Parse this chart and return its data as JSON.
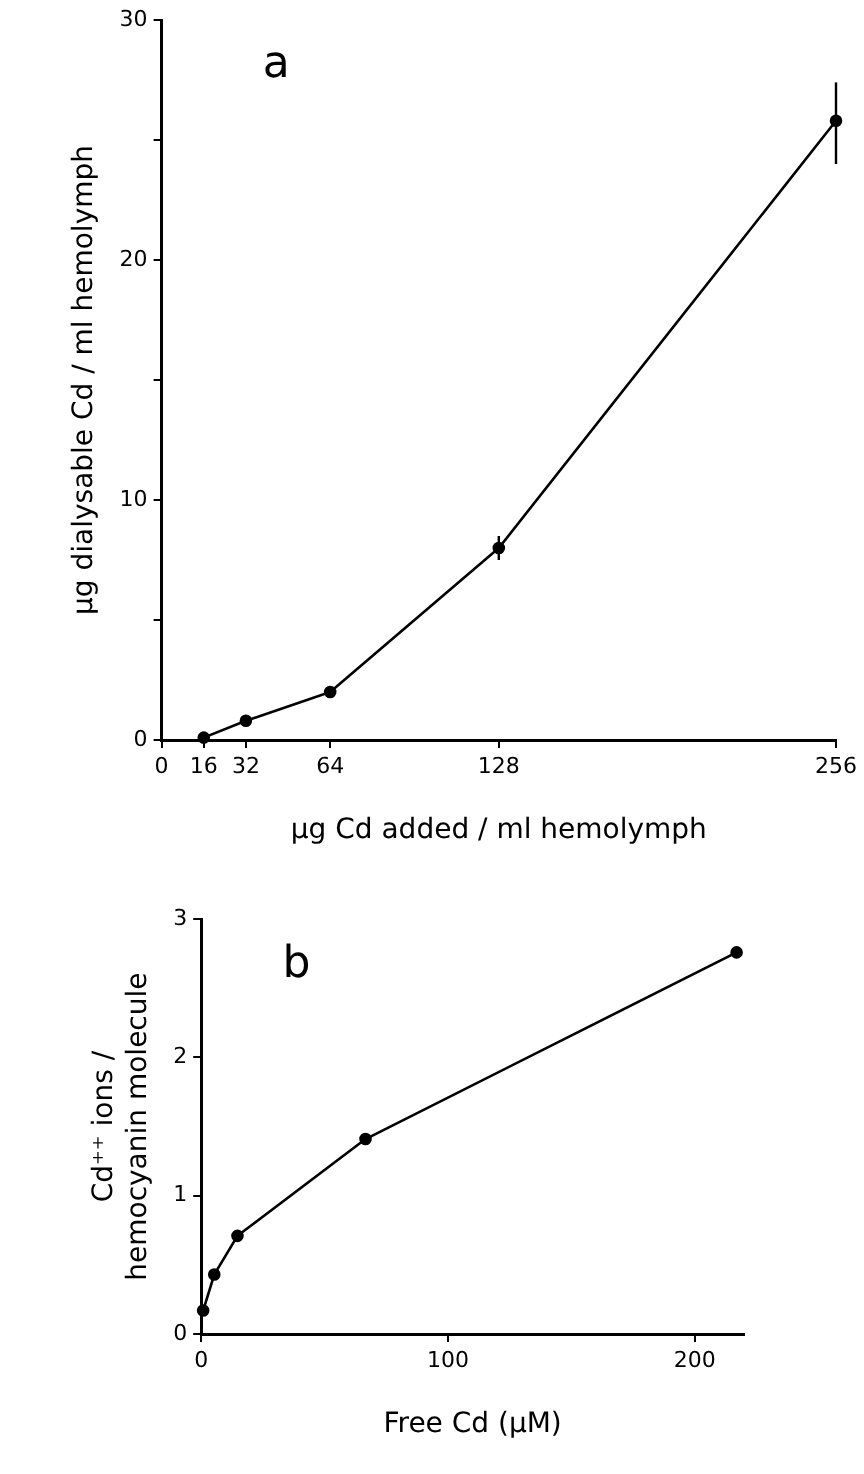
{
  "chart_data": [
    {
      "type": "line",
      "title": "a",
      "xlabel": "µg Cd added / ml hemolymph",
      "ylabel": "µg dialysable Cd / ml hemolymph",
      "x": [
        16,
        32,
        64,
        128,
        256
      ],
      "series": [
        {
          "color": "#000000",
          "values": [
            0.1,
            0.8,
            2.0,
            8.0,
            25.8
          ],
          "errors": [
            null,
            null,
            null,
            0.5,
            [
              24.0,
              27.4
            ]
          ]
        }
      ],
      "xlim": [
        0,
        256
      ],
      "xticks": [
        0,
        16,
        32,
        64,
        128,
        256
      ],
      "ylim": [
        0,
        30
      ],
      "yticks": [
        0,
        {
          "value": 5,
          "label": null
        },
        10,
        {
          "value": 15,
          "label": null
        },
        20,
        {
          "value": 25,
          "label": null
        },
        30
      ],
      "grid": false,
      "marker": "circle",
      "line_style": "solid"
    },
    {
      "type": "line",
      "title": "b",
      "xlabel": "Free Cd (µM)",
      "ylabel": "Cd⁺⁺ ions /\nhemocyanin molecule",
      "x": [
        0.8,
        5.3,
        14.7,
        66.6,
        217
      ],
      "series": [
        {
          "color": "#000000",
          "values": [
            0.17,
            0.43,
            0.71,
            1.41,
            2.76
          ]
        }
      ],
      "xlim": [
        0,
        220
      ],
      "xticks": [
        0,
        100,
        200
      ],
      "ylim": [
        0,
        3
      ],
      "yticks": [
        0,
        1,
        2,
        3
      ],
      "grid": false,
      "marker": "circle",
      "line_style": "solid"
    }
  ]
}
